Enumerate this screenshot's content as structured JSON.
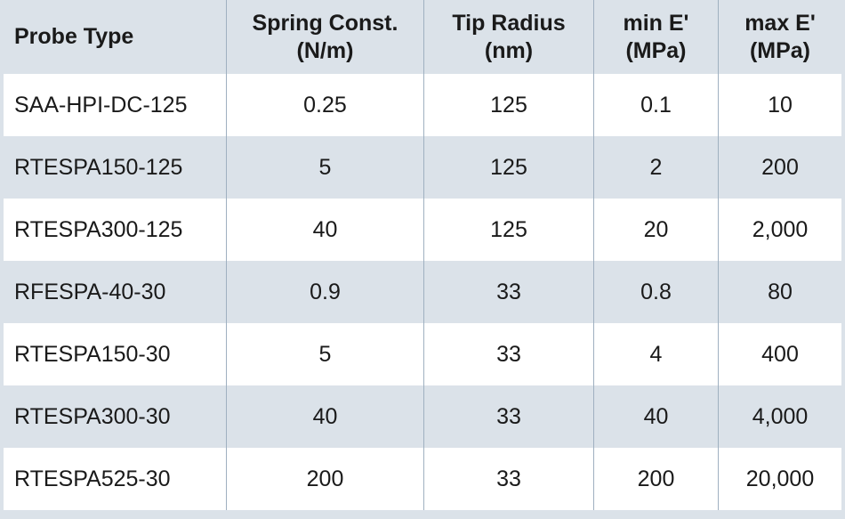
{
  "table": {
    "headers": [
      "Probe Type",
      "Spring Const.\n(N/m)",
      "Tip Radius\n(nm)",
      "min E'\n(MPa)",
      "max E'\n(MPa)"
    ],
    "rows": [
      [
        "SAA-HPI-DC-125",
        "0.25",
        "125",
        "0.1",
        "10"
      ],
      [
        "RTESPA150-125",
        "5",
        "125",
        "2",
        "200"
      ],
      [
        "RTESPA300-125",
        "40",
        "125",
        "20",
        "2,000"
      ],
      [
        "RFESPA-40-30",
        "0.9",
        "33",
        "0.8",
        "80"
      ],
      [
        "RTESPA150-30",
        "5",
        "33",
        "4",
        "400"
      ],
      [
        "RTESPA300-30",
        "40",
        "33",
        "40",
        "4,000"
      ],
      [
        "RTESPA525-30",
        "200",
        "33",
        "200",
        "20,000"
      ]
    ]
  },
  "colors": {
    "background": "#dbe2e9",
    "row_alt": "#ffffff",
    "divider": "#9fb0c0"
  }
}
